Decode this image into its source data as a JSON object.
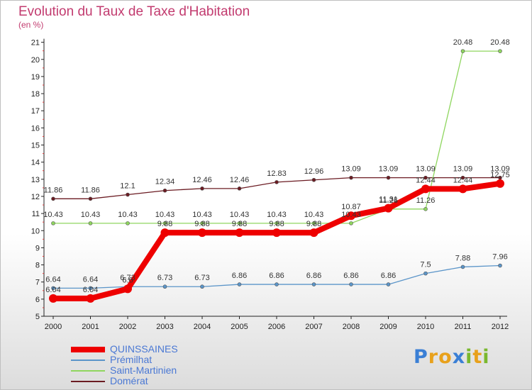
{
  "header": {
    "title": "Evolution du Taux de Taxe d'Habitation",
    "unit": "(en %)"
  },
  "logo": {
    "text": "Proxiti",
    "letters": [
      "P",
      "r",
      "o",
      "x",
      "i",
      "t",
      "i"
    ],
    "colors": [
      "#3a7fd5",
      "#e8a11c",
      "#e8a11c",
      "#3a7fd5",
      "#7ab82e",
      "#e8a11c",
      "#7ab82e"
    ]
  },
  "chart_data": {
    "type": "line",
    "x": [
      "2000",
      "2001",
      "2002",
      "2003",
      "2004",
      "2005",
      "2006",
      "2007",
      "2008",
      "2009",
      "2010",
      "2011",
      "2012"
    ],
    "ylim": [
      5,
      21
    ],
    "yticks": [
      5,
      6,
      7,
      8,
      9,
      10,
      11,
      12,
      13,
      14,
      15,
      16,
      17,
      18,
      19,
      20,
      21
    ],
    "grid": false,
    "legend_position": "bottom-left",
    "series": [
      {
        "name": "Domérat",
        "color": "#6b1b22",
        "width": 1.3,
        "marker": 5,
        "values": [
          11.86,
          11.86,
          12.1,
          12.34,
          12.46,
          12.46,
          12.83,
          12.96,
          13.09,
          13.09,
          13.09,
          13.09,
          13.09
        ],
        "labels": [
          "11.86",
          "11.86",
          "12.1",
          "12.34",
          "12.46",
          "12.46",
          "12.83",
          "12.96",
          "13.09",
          "13.09",
          "13.09",
          "13.09",
          "13.09"
        ],
        "legend_width": 2
      },
      {
        "name": "Saint-Martinien",
        "color": "#8fd65f",
        "width": 1.3,
        "marker": 5,
        "values": [
          10.43,
          10.43,
          10.43,
          10.43,
          10.43,
          10.43,
          10.43,
          10.43,
          10.43,
          11.26,
          11.26,
          20.48,
          20.48
        ],
        "labels": [
          "10.43",
          "10.43",
          "10.43",
          "10.43",
          "10.43",
          "10.43",
          "10.43",
          "10.43",
          "10.43",
          "11.26",
          "11.26",
          "20.48",
          "20.48"
        ],
        "legend_width": 2
      },
      {
        "name": "Prémilhat",
        "color": "#5b95c9",
        "width": 1.3,
        "marker": 5,
        "values": [
          6.64,
          6.64,
          6.73,
          6.73,
          6.73,
          6.86,
          6.86,
          6.86,
          6.86,
          6.86,
          7.5,
          7.88,
          7.96
        ],
        "labels": [
          "6.64",
          "6.64",
          "6.73",
          "6.73",
          "6.73",
          "6.86",
          "6.86",
          "6.86",
          "6.86",
          "6.86",
          "7.5",
          "7.88",
          "7.96"
        ],
        "legend_width": 2
      },
      {
        "name": "QUINSSAINES",
        "color": "#ee0000",
        "width": 8,
        "marker": 12,
        "values": [
          6.04,
          6.04,
          6.6,
          9.88,
          9.88,
          9.88,
          9.88,
          9.88,
          10.87,
          11.31,
          12.44,
          12.44,
          12.75
        ],
        "labels": [
          "6.04",
          "6.04",
          "6.6",
          "9.88",
          "9.88",
          "9.88",
          "9.88",
          "9.88",
          "10.87",
          "11.31",
          "12.44",
          "12.44",
          "12.75"
        ],
        "legend_width": 8
      }
    ]
  }
}
